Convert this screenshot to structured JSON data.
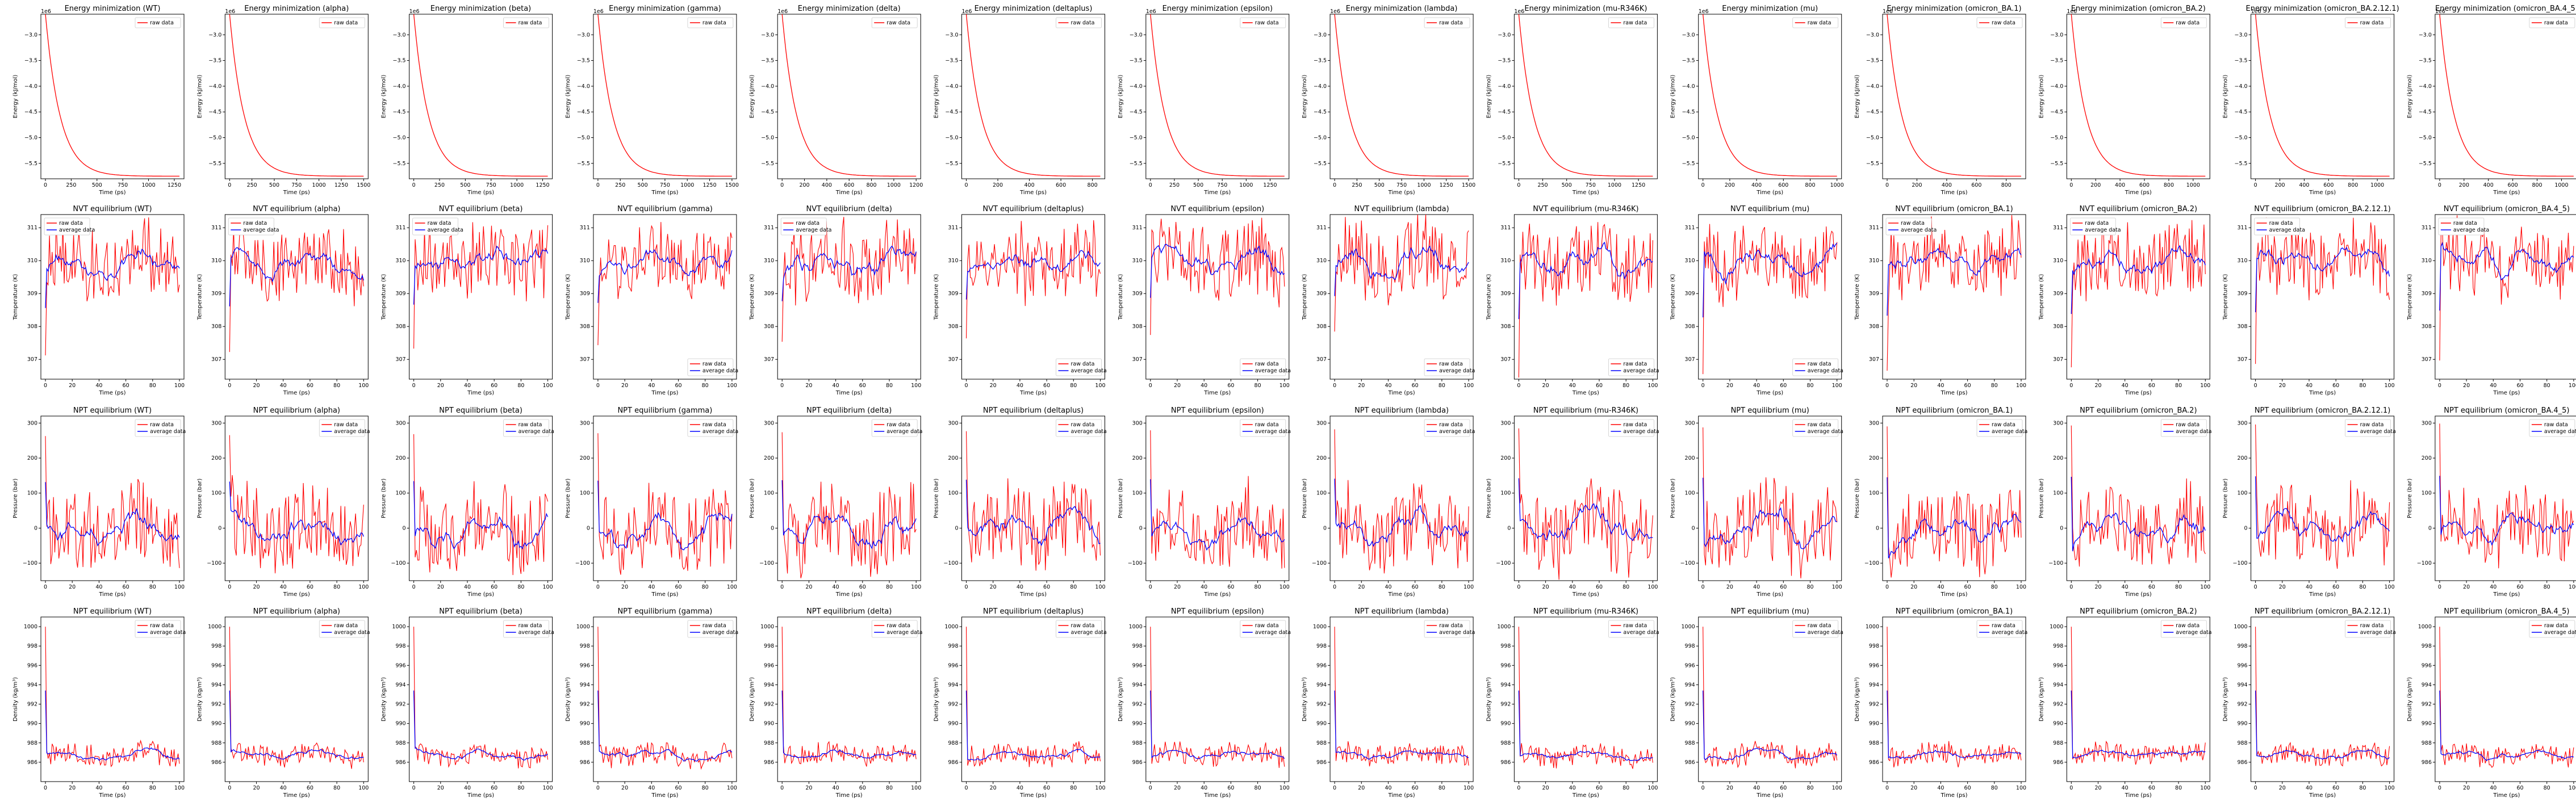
{
  "variants": [
    "WT",
    "alpha",
    "beta",
    "gamma",
    "delta",
    "deltaplus",
    "epsilon",
    "lambda",
    "mu-R346K",
    "mu",
    "omicron_BA.1",
    "omicron_BA.2",
    "omicron_BA.2.12.1",
    "omicron_BA.4_5"
  ],
  "legend": {
    "raw": "raw data",
    "average": "average data"
  },
  "colors": {
    "raw": "#ff0000",
    "average": "#0000ff"
  },
  "chart_data": [
    {
      "row": "energy",
      "type": "line",
      "title_prefix": "Energy minimization",
      "xlabel": "Time (ps)",
      "ylabel": "Energy (kJ/mol)",
      "offset_label": "1e6",
      "yticks": [
        "−3.0",
        "−3.5",
        "−4.0",
        "−4.5",
        "−5.0",
        "−5.5"
      ],
      "ylim": [
        -5.8,
        -2.6
      ],
      "xlim_by_variant": [
        1300,
        1500,
        1300,
        1500,
        1200,
        850,
        1400,
        1500,
        1400,
        1000,
        900,
        1100,
        1100,
        1100
      ],
      "curve": {
        "start": -2.6,
        "end": -5.75,
        "shape": "exponential decay"
      },
      "series": [
        "raw"
      ],
      "legend_position": "top-right"
    },
    {
      "row": "nvt",
      "type": "line",
      "title_prefix": "NVT equilibrium",
      "xlabel": "Time (ps)",
      "ylabel": "Temperature (K)",
      "yticks": [
        "307",
        "308",
        "309",
        "310",
        "311"
      ],
      "ylim": [
        306.4,
        311.4
      ],
      "xlim": [
        0,
        100
      ],
      "xticks": [
        "0",
        "20",
        "40",
        "60",
        "80",
        "100"
      ],
      "typical_mean": 310.0,
      "typical_raw_range": [
        309.0,
        311.2
      ],
      "series": [
        "raw",
        "average"
      ],
      "legend_position": "top-left / bottom-right"
    },
    {
      "row": "npt_pressure",
      "type": "line",
      "title_prefix": "NPT equilibrium",
      "xlabel": "Time (ps)",
      "ylabel": "Pressure (bar)",
      "yticks": [
        "−100",
        "0",
        "100",
        "200",
        "300"
      ],
      "ylim": [
        -150,
        320
      ],
      "xlim": [
        0,
        100
      ],
      "xticks": [
        "0",
        "20",
        "40",
        "60",
        "80",
        "100"
      ],
      "typical_mean": 0,
      "typical_raw_range": [
        -100,
        120
      ],
      "series": [
        "raw",
        "average"
      ],
      "legend_position": "top-right"
    },
    {
      "row": "npt_density",
      "type": "line",
      "title_prefix": "NPT equilibrium",
      "xlabel": "Time (ps)",
      "ylabel": "Density (kg/m³)",
      "yticks": [
        "986",
        "988",
        "990",
        "992",
        "994",
        "996",
        "998",
        "1000"
      ],
      "ylim": [
        984,
        1001
      ],
      "xlim": [
        0,
        100
      ],
      "xticks": [
        "0",
        "20",
        "40",
        "60",
        "80",
        "100"
      ],
      "typical_mean": 986.8,
      "typical_raw_range": [
        985.8,
        988.0
      ],
      "series": [
        "raw",
        "average"
      ],
      "legend_position": "top-right"
    }
  ]
}
